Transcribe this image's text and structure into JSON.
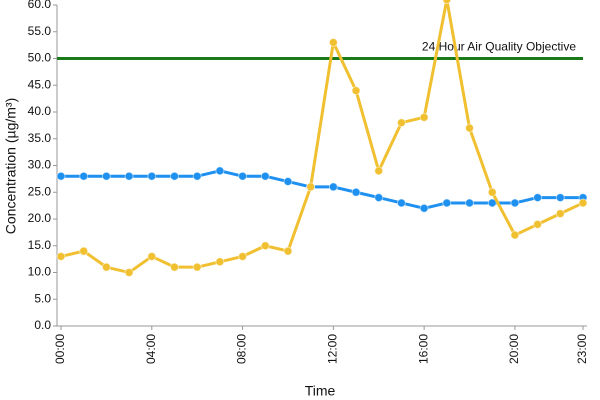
{
  "chart_data": {
    "type": "line",
    "y_label": "Concentration (µg/m³)",
    "x_label": "Time",
    "categories": [
      "00:00",
      null,
      null,
      null,
      "04:00",
      null,
      null,
      null,
      "08:00",
      null,
      null,
      null,
      "12:00",
      null,
      null,
      null,
      "16:00",
      null,
      null,
      null,
      "20:00",
      null,
      null,
      "23:00"
    ],
    "series": [
      {
        "color": "#1e90f0",
        "values": [
          28,
          28,
          28,
          28,
          28,
          28,
          28,
          29,
          28,
          28,
          27,
          26,
          26,
          25,
          24,
          23,
          22,
          23,
          23,
          23,
          23,
          24,
          24,
          24
        ]
      },
      {
        "color": "#f0c030",
        "values": [
          13,
          14,
          11,
          10,
          13,
          11,
          11,
          12,
          13,
          15,
          14,
          26,
          53,
          44,
          29,
          38,
          39,
          61,
          37,
          25,
          17,
          19,
          21,
          23
        ]
      }
    ],
    "threshold": {
      "value": 50,
      "label": "24 Hour Air Quality Objective",
      "color": "#1a7a1a"
    },
    "ylim": [
      0,
      60
    ],
    "yticks": [
      {
        "value": 0,
        "label": "0.0"
      },
      {
        "value": 5,
        "label": "5.0"
      },
      {
        "value": 10,
        "label": "10.0"
      },
      {
        "value": 15,
        "label": "15.0"
      },
      {
        "value": 20,
        "label": "20.0"
      },
      {
        "value": 25,
        "label": "25.0"
      },
      {
        "value": 30,
        "label": "30.0"
      },
      {
        "value": 35,
        "label": "35.0"
      },
      {
        "value": 40,
        "label": "40.0"
      },
      {
        "value": 45,
        "label": "45.0"
      },
      {
        "value": 50,
        "label": "50.0"
      },
      {
        "value": 55,
        "label": "55.0"
      },
      {
        "value": 60,
        "label": "60.0"
      }
    ],
    "grid": false
  }
}
